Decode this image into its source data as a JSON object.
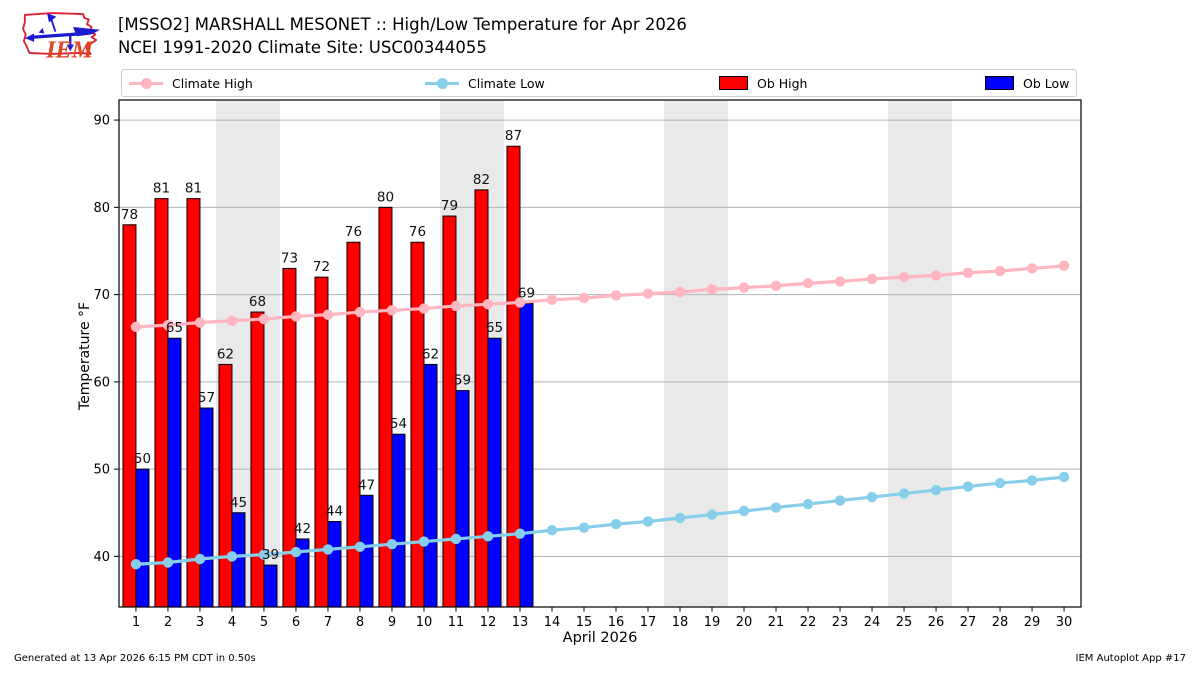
{
  "logo": {
    "text": "IEM"
  },
  "footer": {
    "left": "Generated at 13 Apr 2026 6:15 PM CDT in 0.50s",
    "right": "IEM Autoplot App #17"
  },
  "chart_data": {
    "type": "bar",
    "title": "[MSSO2] MARSHALL MESONET :: High/Low Temperature for Apr 2026",
    "subtitle": "NCEI 1991-2020 Climate Site: USC00344055",
    "xlabel": "April 2026",
    "ylabel": "Temperature °F",
    "x": [
      1,
      2,
      3,
      4,
      5,
      6,
      7,
      8,
      9,
      10,
      11,
      12,
      13,
      14,
      15,
      16,
      17,
      18,
      19,
      20,
      21,
      22,
      23,
      24,
      25,
      26,
      27,
      28,
      29,
      30
    ],
    "xlim": [
      0.47,
      30.53
    ],
    "ylim": [
      34.2,
      92.3
    ],
    "yticks": [
      40,
      50,
      60,
      70,
      80,
      90
    ],
    "grid": "horizontal-only",
    "legend_position": "top",
    "weekend_shading": [
      [
        3.5,
        5.5
      ],
      [
        10.5,
        12.5
      ],
      [
        17.5,
        19.5
      ],
      [
        24.5,
        26.5
      ]
    ],
    "colors": {
      "weekend_shade": "#e9e9e9",
      "grid": "#b3b3b3",
      "axis": "#000000",
      "bar_label": "#111111"
    },
    "series": [
      {
        "name": "Climate High",
        "type": "line",
        "color": "#ffb6c1",
        "values": [
          66.3,
          66.5,
          66.8,
          67.0,
          67.2,
          67.5,
          67.7,
          68.0,
          68.2,
          68.4,
          68.7,
          68.9,
          69.1,
          69.4,
          69.6,
          69.9,
          70.1,
          70.3,
          70.6,
          70.8,
          71.0,
          71.3,
          71.5,
          71.8,
          72.0,
          72.2,
          72.5,
          72.7,
          73.0,
          73.3
        ]
      },
      {
        "name": "Climate Low",
        "type": "line",
        "color": "#87ceeb",
        "values": [
          39.1,
          39.3,
          39.7,
          40.0,
          40.2,
          40.5,
          40.8,
          41.1,
          41.4,
          41.7,
          42.0,
          42.3,
          42.6,
          43.0,
          43.3,
          43.7,
          44.0,
          44.4,
          44.8,
          45.2,
          45.6,
          46.0,
          46.4,
          46.8,
          47.2,
          47.6,
          48.0,
          48.4,
          48.7,
          49.1
        ]
      },
      {
        "name": "Ob High",
        "type": "bar",
        "color": "#ff0000",
        "days": [
          1,
          2,
          3,
          4,
          5,
          6,
          7,
          8,
          9,
          10,
          11,
          12,
          13
        ],
        "values": [
          78,
          81,
          81,
          62,
          68,
          73,
          72,
          76,
          80,
          76,
          79,
          82,
          87
        ]
      },
      {
        "name": "Ob Low",
        "type": "bar",
        "color": "#0000ff",
        "days": [
          1,
          2,
          3,
          4,
          5,
          6,
          7,
          8,
          9,
          10,
          11,
          12,
          13
        ],
        "values": [
          50,
          65,
          57,
          45,
          39,
          42,
          44,
          47,
          54,
          62,
          59,
          65,
          69
        ]
      }
    ]
  }
}
